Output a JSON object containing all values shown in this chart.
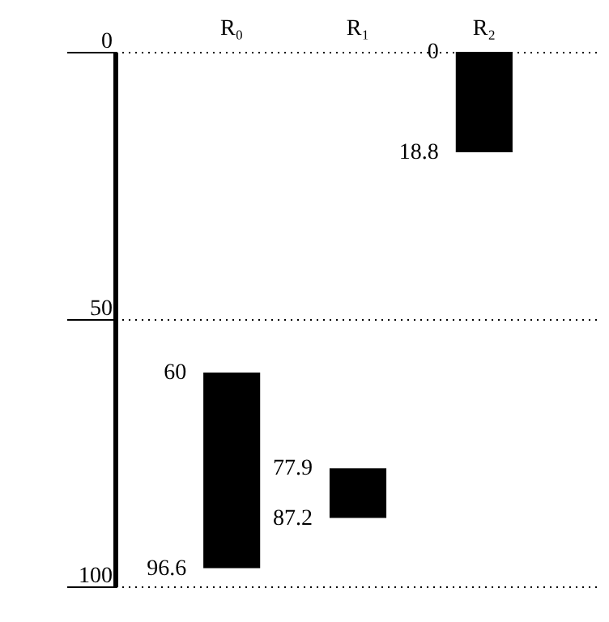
{
  "chart_data": {
    "type": "bar",
    "categories": [
      "R₀",
      "R₁",
      "R₂"
    ],
    "base": [
      60,
      77.9,
      0
    ],
    "values": [
      36.6,
      9.3,
      18.8
    ],
    "colors": [
      "#000000",
      "#000000",
      "#000000"
    ],
    "ylim": [
      100,
      0
    ],
    "yticks": [
      0,
      50,
      100
    ],
    "grid": "y",
    "line_style": "dotted",
    "annotations": [
      {
        "text": "60",
        "x": "R₀",
        "y": 60
      },
      {
        "text": "96.6",
        "x": "R₀",
        "y": 96.6
      },
      {
        "text": "77.9",
        "x": "R₁",
        "y": 77.9
      },
      {
        "text": "87.2",
        "x": "R₁",
        "y": 87.2
      },
      {
        "text": "0",
        "x": "R₂",
        "y": 0
      },
      {
        "text": "18.8",
        "x": "R₂",
        "y": 18.8
      }
    ]
  }
}
